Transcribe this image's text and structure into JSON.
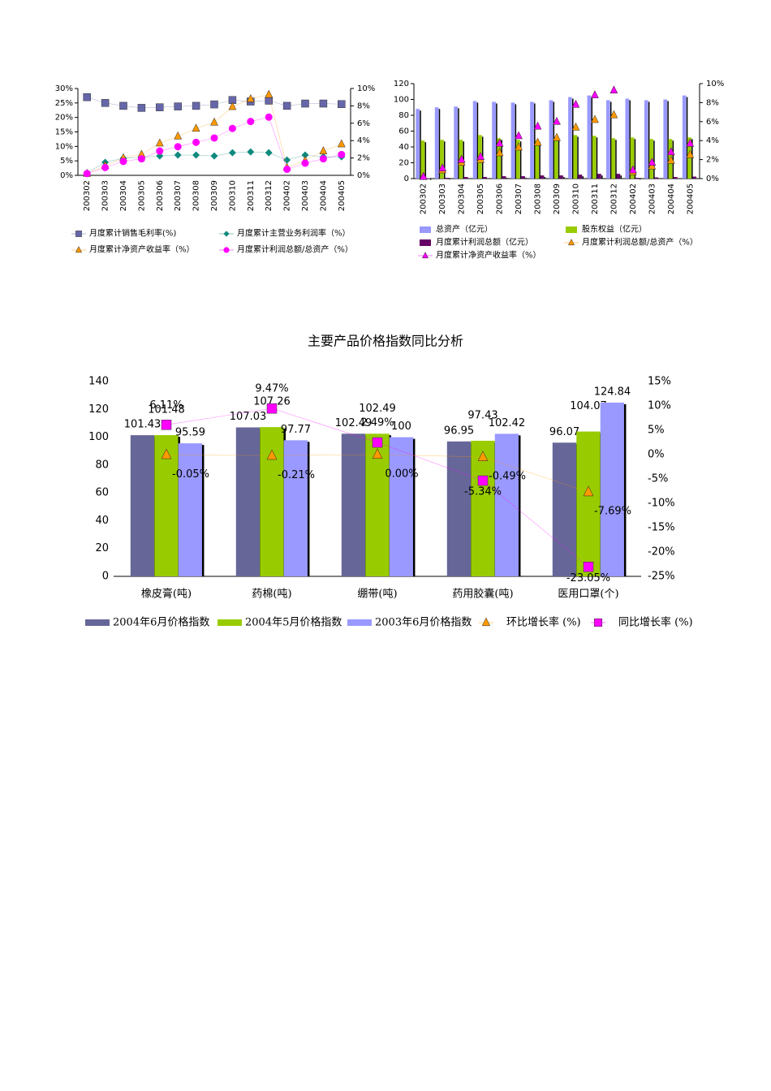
{
  "chart_data": [
    {
      "type": "line",
      "categories": [
        "200302",
        "200303",
        "200304",
        "200305",
        "200306",
        "200307",
        "200308",
        "200309",
        "200310",
        "200311",
        "200312",
        "200402",
        "200403",
        "200404",
        "200405"
      ],
      "ylim": [
        0,
        30
      ],
      "yticks": [
        {
          "value": 0,
          "label": "0%"
        },
        {
          "value": 5,
          "label": "5%"
        },
        {
          "value": 10,
          "label": "10%"
        },
        {
          "value": 15,
          "label": "15%"
        },
        {
          "value": 20,
          "label": "20%"
        },
        {
          "value": 25,
          "label": "25%"
        },
        {
          "value": 30,
          "label": "30%"
        }
      ],
      "y2lim": [
        0,
        10
      ],
      "y2ticks": [
        {
          "value": 0,
          "label": "0%"
        },
        {
          "value": 2,
          "label": "2%"
        },
        {
          "value": 4,
          "label": "4%"
        },
        {
          "value": 6,
          "label": "6%"
        },
        {
          "value": 8,
          "label": "8%"
        },
        {
          "value": 10,
          "label": "10%"
        }
      ],
      "lines": true,
      "series": [
        {
          "name": "月度累计销售毛利率(%)",
          "color": "#6666aa",
          "marker": "square",
          "values": [
            27,
            25,
            24,
            23.3,
            23.5,
            23.8,
            24,
            24.5,
            26,
            25.5,
            25.8,
            24,
            24.8,
            24.8,
            24.6
          ]
        },
        {
          "name": "月度累计主营业务利润率（%）",
          "color": "#0e8a7e",
          "marker": "diamond",
          "values": [
            0.8,
            4.5,
            5.9,
            6.2,
            6.7,
            7,
            7,
            6.7,
            7.8,
            8.1,
            7.8,
            5.3,
            7,
            6.4,
            6.4
          ]
        },
        {
          "name": "月度累计净资产收益率（%）",
          "color": "#ff9900",
          "marker": "triangle",
          "axis": "y2",
          "values": [
            0.2,
            1.1,
            2.0,
            2.4,
            3.7,
            4.5,
            5.4,
            6.1,
            7.9,
            8.8,
            9.3,
            0.9,
            1.7,
            2.8,
            3.6
          ]
        },
        {
          "name": "月度累计利润总额/总资产（%）",
          "color": "#ff00ff",
          "marker": "circle",
          "axis": "y2",
          "values": [
            0.2,
            0.9,
            1.6,
            1.9,
            2.8,
            3.3,
            3.8,
            4.3,
            5.4,
            6.2,
            6.7,
            0.7,
            1.4,
            1.9,
            2.4
          ]
        }
      ]
    },
    {
      "type": "bar",
      "categories": [
        "200302",
        "200303",
        "200304",
        "200305",
        "200306",
        "200307",
        "200308",
        "200309",
        "200310",
        "200311",
        "200312",
        "200402",
        "200403",
        "200404",
        "200405"
      ],
      "ylim": [
        0,
        120
      ],
      "yticks": [
        0,
        20,
        40,
        60,
        80,
        100,
        120
      ],
      "y2lim": [
        0,
        10
      ],
      "y2ticks": [
        {
          "value": 0,
          "label": "0%"
        },
        {
          "value": 2,
          "label": "2%"
        },
        {
          "value": 4,
          "label": "4%"
        },
        {
          "value": 6,
          "label": "6%"
        },
        {
          "value": 8,
          "label": "8%"
        },
        {
          "value": 10,
          "label": "10%"
        }
      ],
      "lines": false,
      "series": [
        {
          "name": "总资产（亿元）",
          "color": "#9999ff",
          "values": [
            88,
            90,
            91,
            98,
            97,
            96,
            97,
            99,
            103,
            105,
            99,
            101,
            99,
            100,
            105
          ]
        },
        {
          "name": "股东权益（亿元）",
          "color": "#99cc00",
          "values": [
            48,
            49,
            49,
            55,
            51,
            49,
            48,
            51,
            55,
            54,
            51,
            52,
            50,
            50,
            52
          ]
        },
        {
          "name": "月度累计利润总额（亿元）",
          "color": "#660066",
          "values": [
            0.5,
            1,
            2,
            2,
            3,
            3,
            4,
            4,
            5,
            6,
            6,
            1,
            1.5,
            2,
            2.5
          ]
        },
        {
          "name": "月度累计利润总额/总资产（%）",
          "color": "#ff9900",
          "marker": "triangle",
          "axis": "y2",
          "values": [
            0.2,
            0.9,
            1.7,
            2.0,
            2.7,
            3.3,
            3.8,
            4.3,
            5.4,
            6.2,
            6.7,
            0.7,
            1.3,
            1.9,
            2.5
          ]
        },
        {
          "name": "月度累计净资产收益率（%）",
          "color": "#ff00ff",
          "marker": "triangle",
          "axis": "y2",
          "values": [
            0.2,
            1.1,
            2.0,
            2.3,
            3.7,
            4.5,
            5.5,
            6.0,
            7.8,
            8.8,
            9.3,
            0.9,
            1.7,
            2.8,
            3.7
          ]
        }
      ]
    },
    {
      "type": "bar",
      "title": "主要产品价格指数同比分析",
      "categories": [
        "橡皮膏(吨)",
        "药棉(吨)",
        "绷带(吨)",
        "药用胶囊(吨)",
        "医用口罩(个)"
      ],
      "ylim": [
        0,
        140
      ],
      "yticks": [
        0,
        20,
        40,
        60,
        80,
        100,
        120,
        140
      ],
      "y2lim": [
        -25,
        15
      ],
      "y2ticks": [
        {
          "value": -25,
          "label": "-25%"
        },
        {
          "value": -20,
          "label": "-20%"
        },
        {
          "value": -15,
          "label": "-15%"
        },
        {
          "value": -10,
          "label": "-10%"
        },
        {
          "value": -5,
          "label": "-5%"
        },
        {
          "value": 0,
          "label": "0%"
        },
        {
          "value": 5,
          "label": "5%"
        },
        {
          "value": 10,
          "label": "10%"
        },
        {
          "value": 15,
          "label": "15%"
        }
      ],
      "lines": true,
      "show_values": true,
      "series": [
        {
          "name": "2004年6月价格指数",
          "color": "#666699",
          "values": [
            101.43,
            107.03,
            102.49,
            96.95,
            96.07
          ]
        },
        {
          "name": "2004年5月价格指数",
          "color": "#99cc00",
          "values": [
            101.48,
            107.26,
            102.49,
            97.43,
            104.07
          ]
        },
        {
          "name": "2003年6月价格指数",
          "color": "#9999ff",
          "values": [
            95.59,
            97.77,
            100,
            102.42,
            124.84
          ]
        },
        {
          "name": "环比增长率 (%)",
          "color": "#ff9900",
          "marker": "triangle",
          "axis": "y2",
          "values": [
            -0.05,
            -0.21,
            0,
            -0.49,
            -7.69
          ],
          "value_labels": [
            "-0.05%",
            "-0.21%",
            "0.00%",
            "-0.49%",
            "-7.69%"
          ]
        },
        {
          "name": "同比增长率 (%)",
          "color": "#ff00ff",
          "marker": "square",
          "axis": "y2",
          "values": [
            6.11,
            9.47,
            2.49,
            -5.34,
            -23.05
          ],
          "value_labels": [
            "6.11%",
            "9.47%",
            "2.49%",
            "-5.34%",
            "-23.05%"
          ]
        }
      ]
    }
  ]
}
